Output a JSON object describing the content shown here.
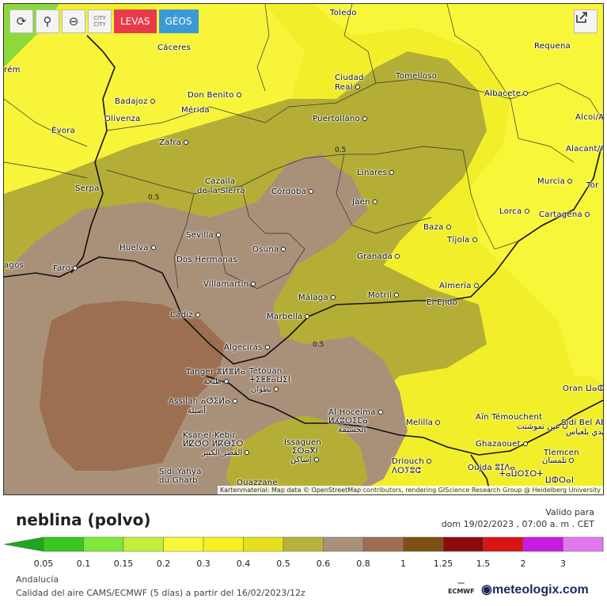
{
  "toolbar": {
    "refresh_icon": "refresh-icon",
    "location_icon": "location-pin-icon",
    "zoom_icon": "zoom-out-icon",
    "city_label": "CITY CITY",
    "levas_label": "LEVAS",
    "geos_label": "GÉOS",
    "share_icon": "share-icon"
  },
  "map": {
    "cities": [
      {
        "name": "Toledo",
        "dot": false
      },
      {
        "name": "Cáceres",
        "dot": false
      },
      {
        "name": "Requena",
        "dot": false
      },
      {
        "name": "Tomelloso",
        "dot": false
      },
      {
        "name": "Ciudad",
        "dot": false
      },
      {
        "name": "Real",
        "dot": true
      },
      {
        "name": "Badajoz",
        "dot": true
      },
      {
        "name": "Don Benito",
        "dot": true
      },
      {
        "name": "Mérida",
        "dot": false
      },
      {
        "name": "Olivenza",
        "dot": false
      },
      {
        "name": "Albacete",
        "dot": true
      },
      {
        "name": "Alcoi/A",
        "dot": false
      },
      {
        "name": "Évora",
        "dot": false
      },
      {
        "name": "Puertollano",
        "dot": true
      },
      {
        "name": "Zafra",
        "dot": true
      },
      {
        "name": "Alacant/A",
        "dot": false
      },
      {
        "name": "Linares",
        "dot": true
      },
      {
        "name": "Cazalla",
        "dot": false
      },
      {
        "name": "de la Sierra",
        "dot": false
      },
      {
        "name": "Serpa",
        "dot": false
      },
      {
        "name": "Córdoba",
        "dot": true
      },
      {
        "name": "Murcia",
        "dot": true
      },
      {
        "name": "Tor",
        "dot": false
      },
      {
        "name": "Jaén",
        "dot": true
      },
      {
        "name": "Lorca",
        "dot": true
      },
      {
        "name": "Cartagena",
        "dot": true
      },
      {
        "name": "Sevilla",
        "dot": true
      },
      {
        "name": "Baza",
        "dot": true
      },
      {
        "name": "Tíjola",
        "dot": true
      },
      {
        "name": "Huelva",
        "dot": true
      },
      {
        "name": "Osuna",
        "dot": true
      },
      {
        "name": "Dos Hermanas",
        "dot": false
      },
      {
        "name": "Granada",
        "dot": true
      },
      {
        "name": "Faro",
        "dot": true
      },
      {
        "name": "agos",
        "dot": false
      },
      {
        "name": "Villamartín",
        "dot": true
      },
      {
        "name": "Almería",
        "dot": true
      },
      {
        "name": "Motril",
        "dot": true
      },
      {
        "name": "Málaga",
        "dot": true
      },
      {
        "name": "El Ejido",
        "dot": false
      },
      {
        "name": "Cádiz",
        "dot": true
      },
      {
        "name": "Marbella",
        "dot": true
      },
      {
        "name": "Algeciras",
        "dot": true
      },
      {
        "name": "Tanger ⴻⵍⴻⵍⴰ",
        "dot": false
      },
      {
        "name": "طنجة",
        "dot": true
      },
      {
        "name": "Tétouan",
        "dot": false
      },
      {
        "name": "ⵜⵉⵟⵟⴰⵡⵉⵏ",
        "dot": false
      },
      {
        "name": "تطوان",
        "dot": true
      },
      {
        "name": "Oran ⵡⴰⵀⵔⴰⵏ",
        "dot": false
      },
      {
        "name": "Assilah ⴰⵚⵉⵍⴰ",
        "dot": true
      },
      {
        "name": "أصيلة",
        "dot": false
      },
      {
        "name": "Al Hoceima",
        "dot": true
      },
      {
        "name": "ⵍⵃⵓⵙⵉⵎⴰ",
        "dot": false
      },
      {
        "name": "الحسيمة",
        "dot": false
      },
      {
        "name": "Aïn Témouchent",
        "dot": false
      },
      {
        "name": "عين تموشنت",
        "dot": true
      },
      {
        "name": "Sidi Bel Ab",
        "dot": false
      },
      {
        "name": "سيدي بلعباس",
        "dot": false
      },
      {
        "name": "Melilla",
        "dot": true
      },
      {
        "name": "Ksar-el-Kebir",
        "dot": false
      },
      {
        "name": "ⵍⵇⵚⵔ ⵍⴽⴱⵉⵔ",
        "dot": false
      },
      {
        "name": "القصر الكبير",
        "dot": true
      },
      {
        "name": "Issaguen",
        "dot": false
      },
      {
        "name": "ⵉⵙⴰⴳⵏ",
        "dot": false
      },
      {
        "name": "إساكن",
        "dot": true
      },
      {
        "name": "Ghazaouet",
        "dot": true
      },
      {
        "name": "Tlemcen",
        "dot": false
      },
      {
        "name": "تلمسان",
        "dot": true
      },
      {
        "name": "Driouch",
        "dot": true
      },
      {
        "name": "ⴷⵔⵢⵓⵛ",
        "dot": false
      },
      {
        "name": "Sidi Yahya",
        "dot": false
      },
      {
        "name": "du Gharb",
        "dot": false
      },
      {
        "name": "Oujda ⵓⵊⴷⴰ",
        "dot": false
      },
      {
        "name": "Ouazzane",
        "dot": false
      },
      {
        "name": "ⵜⴰⵡⵔⵉⵔⵜ",
        "dot": false
      },
      {
        "name": "ⵡⵀⵔⴰⵏ",
        "dot": false
      },
      {
        "name": "rém",
        "dot": false
      }
    ],
    "contour_labels": [
      "0.5",
      "0.5",
      "0.5"
    ],
    "attribution": "Kartenmaterial: Map data © OpenStreetMap contributors, rendering GIScience Research Group @ Heidelberg University"
  },
  "title": "neblina (polvo)",
  "valid": {
    "label": "Valido para",
    "date": "dom 19/02/2023 ,  07:00 a. m . CET"
  },
  "legend": {
    "colors": [
      "#1fa51f",
      "#39c61f",
      "#7ee83a",
      "#c2f03a",
      "#f8f838",
      "#f5f020",
      "#e6e01c",
      "#b8b23a",
      "#a99079",
      "#9c6f50",
      "#7b5214",
      "#8c0a0a",
      "#d81515",
      "#c81ae0",
      "#e278f0",
      "#f2c0f2"
    ],
    "values": [
      "0.05",
      "0.1",
      "0.15",
      "0.2",
      "0.3",
      "0.4",
      "0.5",
      "0.6",
      "0.8",
      "1",
      "1.25",
      "1.5",
      "2",
      "3"
    ]
  },
  "footer": {
    "region": "Andalucía",
    "source": "Calidad del aire CAMS/ECMWF  (5 días)  a partir del 16/02/2023/12z",
    "ecmwf": "ECMWF",
    "brand": "meteologix.com"
  }
}
